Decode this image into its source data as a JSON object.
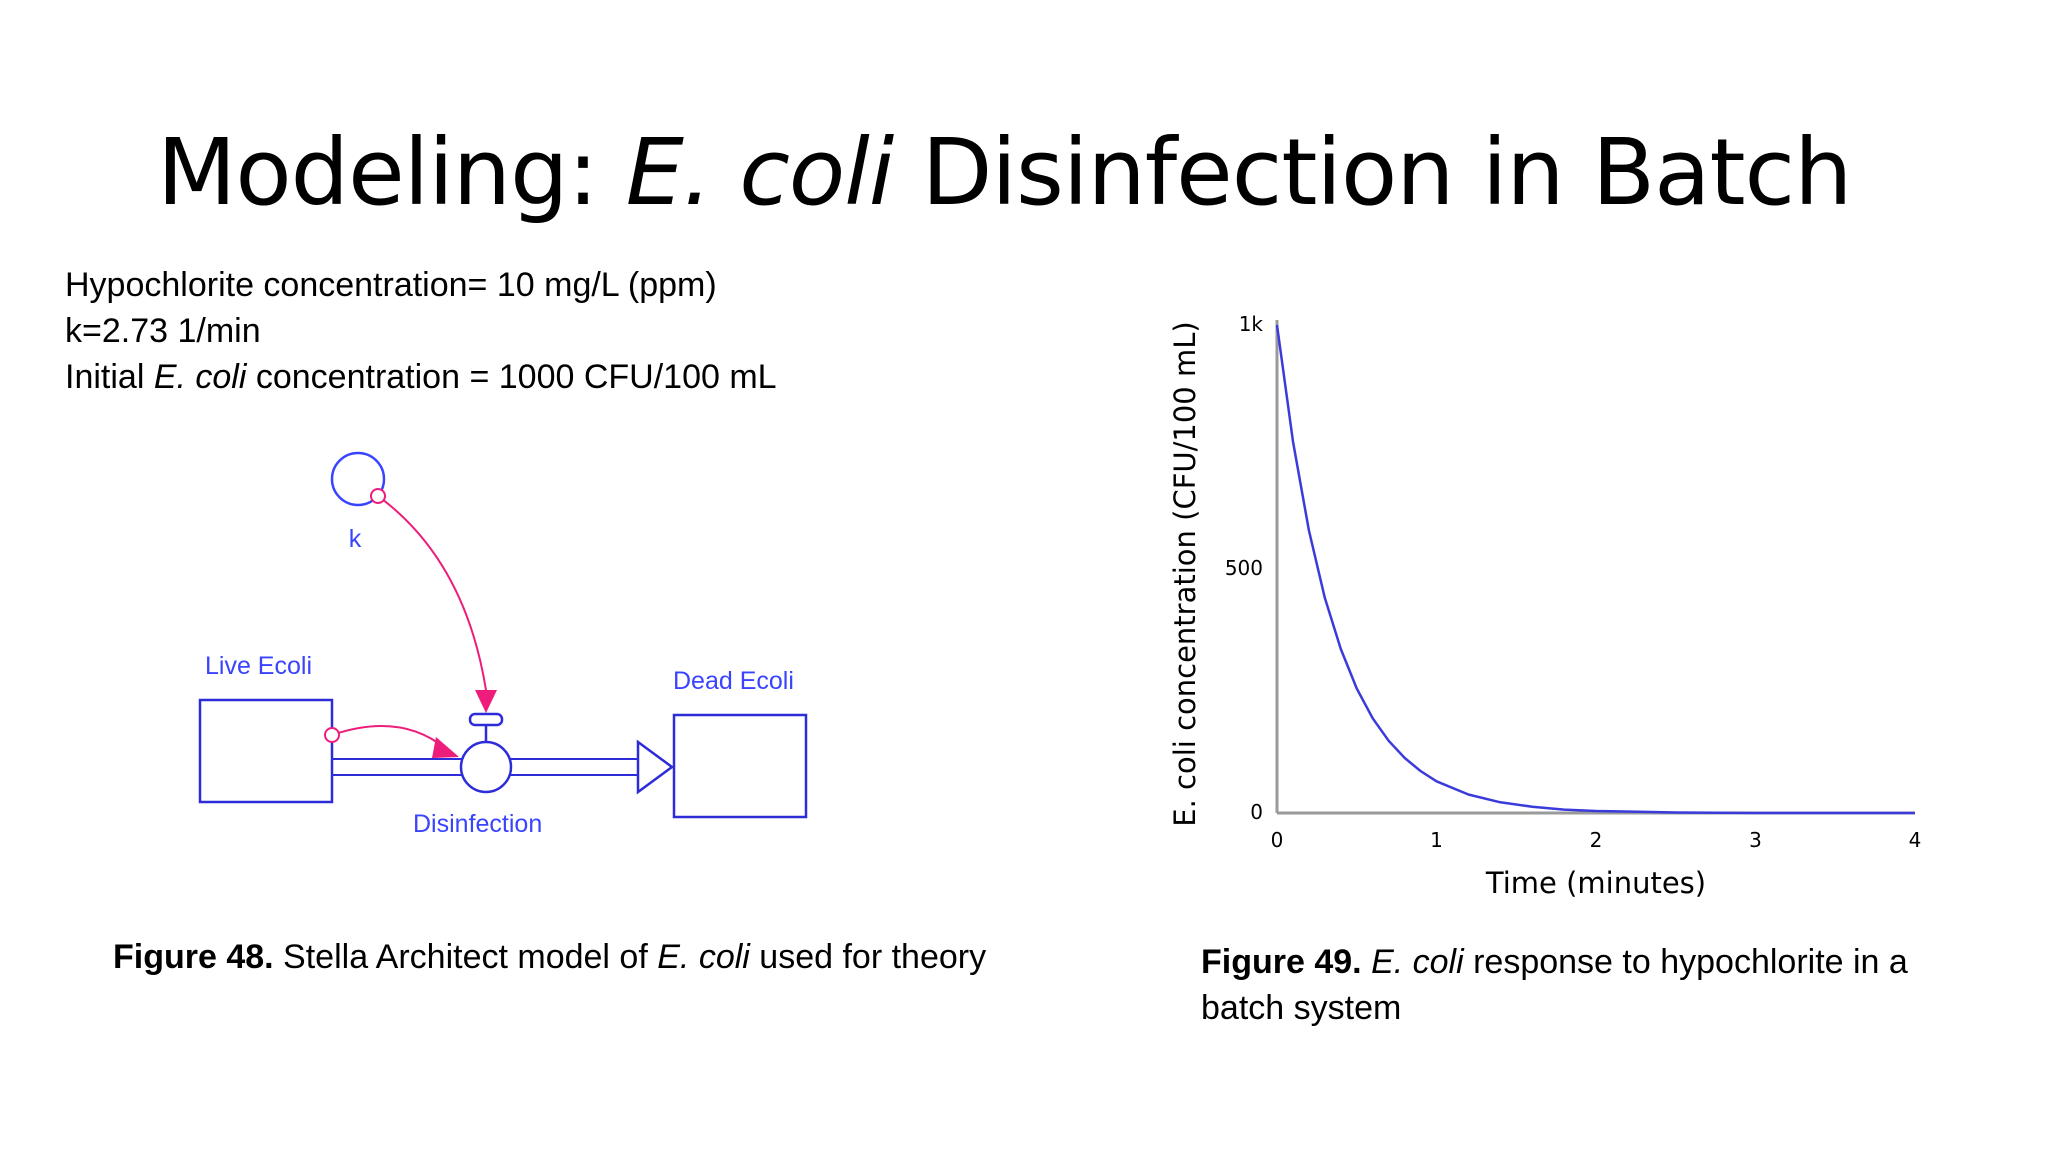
{
  "title": {
    "prefix": "Modeling: ",
    "italic": "E. coli",
    "suffix": " Disinfection in Batch"
  },
  "params": {
    "line1": "Hypochlorite concentration= 10 mg/L (ppm)",
    "line2": "k=2.73 1/min",
    "line3_prefix": "Initial ",
    "line3_italic": "E. coli",
    "line3_suffix": " concentration = 1000 CFU/100 mL"
  },
  "diagram": {
    "converter_label": "k",
    "stock_live": "Live Ecoli",
    "stock_dead": "Dead Ecoli",
    "flow_label": "Disinfection",
    "stock_color": "#2c2cd8",
    "connector_color": "#ee1c7a"
  },
  "figure48_caption": {
    "bold": "Figure 48.",
    "text": " Stella Architect model of ",
    "italic": "E. coli",
    "suffix": " used for theory"
  },
  "figure49_caption": {
    "bold": "Figure 49.",
    "space": " ",
    "italic": "E. coli",
    "suffix": " response to hypochlorite in a batch system"
  },
  "chart_data": {
    "type": "line",
    "title": "",
    "xlabel": "Time (minutes)",
    "ylabel": "E. coli concentration (CFU/100 mL)",
    "xlim": [
      0,
      4
    ],
    "ylim": [
      0,
      1000
    ],
    "x_ticks": [
      0,
      1,
      2,
      3,
      4
    ],
    "x_tick_labels": [
      "0",
      "1",
      "2",
      "3",
      "4"
    ],
    "y_ticks": [
      0,
      500,
      1000
    ],
    "y_tick_labels": [
      "0",
      "500",
      "1k"
    ],
    "grid": false,
    "series": [
      {
        "color": "#3b3bdc",
        "x": [
          0,
          0.1,
          0.2,
          0.3,
          0.4,
          0.5,
          0.6,
          0.7,
          0.8,
          0.9,
          1.0,
          1.2,
          1.4,
          1.6,
          1.8,
          2.0,
          2.5,
          3.0,
          3.5,
          4.0
        ],
        "y": [
          1000,
          761,
          579,
          441,
          336,
          255,
          194,
          148,
          113,
          86,
          65,
          38,
          22,
          13,
          7,
          4,
          1,
          0,
          0,
          0
        ]
      }
    ]
  }
}
